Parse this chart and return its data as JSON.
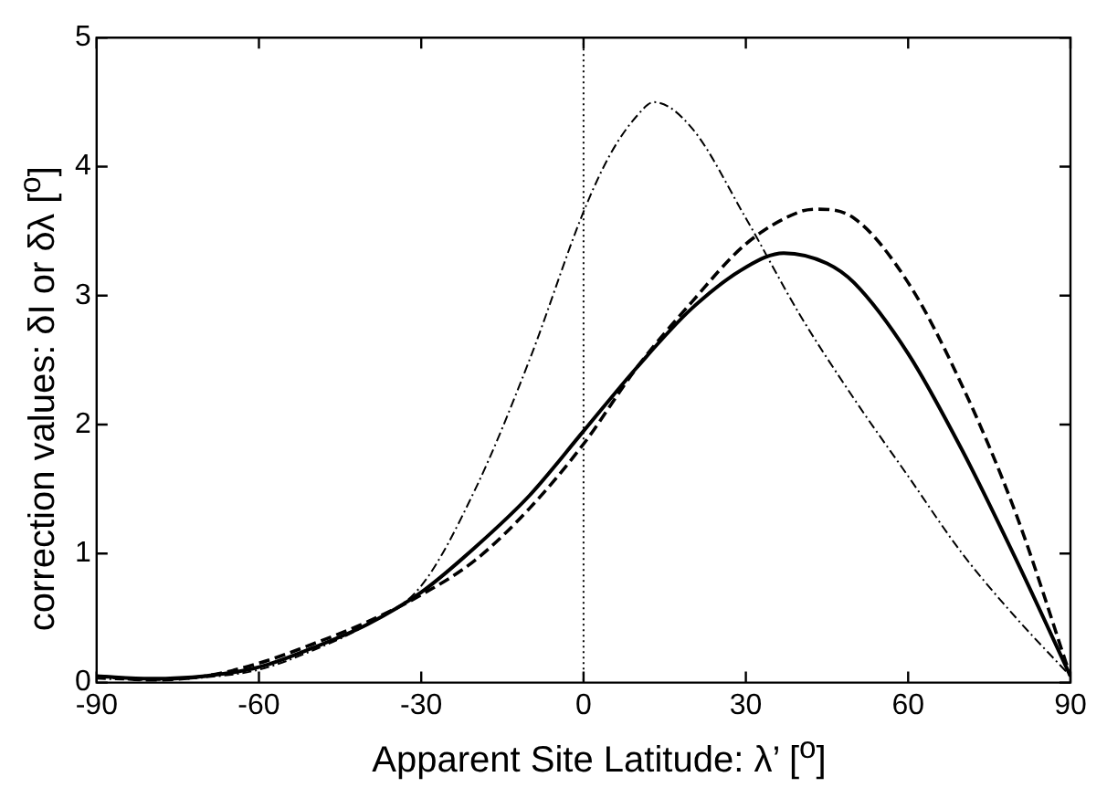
{
  "chart_data": {
    "type": "line",
    "xlabel": "Apparent Site Latitude: λ’ [$^{o}$]",
    "ylabel": "correction values: δI or δλ [$^{o}$]",
    "xlim": [
      -90,
      90
    ],
    "xticks": [
      -90,
      -60,
      -30,
      0,
      30,
      60,
      90
    ],
    "ylim": [
      0,
      5
    ],
    "yticks": [
      0,
      1,
      2,
      3,
      4,
      5
    ],
    "grid": false,
    "legend": false,
    "marker": "none",
    "series": [
      {
        "color": "#000000",
        "line_style": "solid",
        "x": [
          -90,
          -80,
          -70,
          -60,
          -50,
          -40,
          -30,
          -20,
          -10,
          0,
          10,
          20,
          30,
          37,
          45,
          50,
          60,
          70,
          80,
          90
        ],
        "values": [
          0.05,
          0.03,
          0.05,
          0.12,
          0.27,
          0.45,
          0.7,
          1.05,
          1.45,
          1.95,
          2.45,
          2.9,
          3.22,
          3.33,
          3.25,
          3.1,
          2.55,
          1.8,
          0.95,
          0.05
        ]
      },
      {
        "color": "#000000",
        "line_style": "dashed",
        "x": [
          -90,
          -80,
          -70,
          -60,
          -50,
          -40,
          -30,
          -20,
          -10,
          0,
          10,
          20,
          30,
          40,
          43,
          50,
          60,
          70,
          80,
          90
        ],
        "values": [
          0.05,
          0.02,
          0.05,
          0.15,
          0.3,
          0.47,
          0.68,
          0.95,
          1.35,
          1.85,
          2.45,
          2.95,
          3.4,
          3.65,
          3.67,
          3.6,
          3.1,
          2.3,
          1.3,
          0.05
        ]
      },
      {
        "color": "#000000",
        "line_style": "dotted",
        "x": [
          -90,
          -80,
          -70,
          -60,
          -50,
          -40,
          -30,
          -20,
          -10,
          0,
          5,
          10,
          13,
          20,
          30,
          40,
          50,
          60,
          70,
          80,
          90
        ],
        "values": [
          0.03,
          0.02,
          0.04,
          0.1,
          0.25,
          0.45,
          0.75,
          1.5,
          2.5,
          3.65,
          4.1,
          4.4,
          4.5,
          4.3,
          3.6,
          2.85,
          2.2,
          1.6,
          1.0,
          0.5,
          0.05
        ]
      }
    ],
    "ref_lines": [
      {
        "axis": "x",
        "value": 0,
        "line_style": "dotted",
        "color": "#000000"
      }
    ]
  }
}
